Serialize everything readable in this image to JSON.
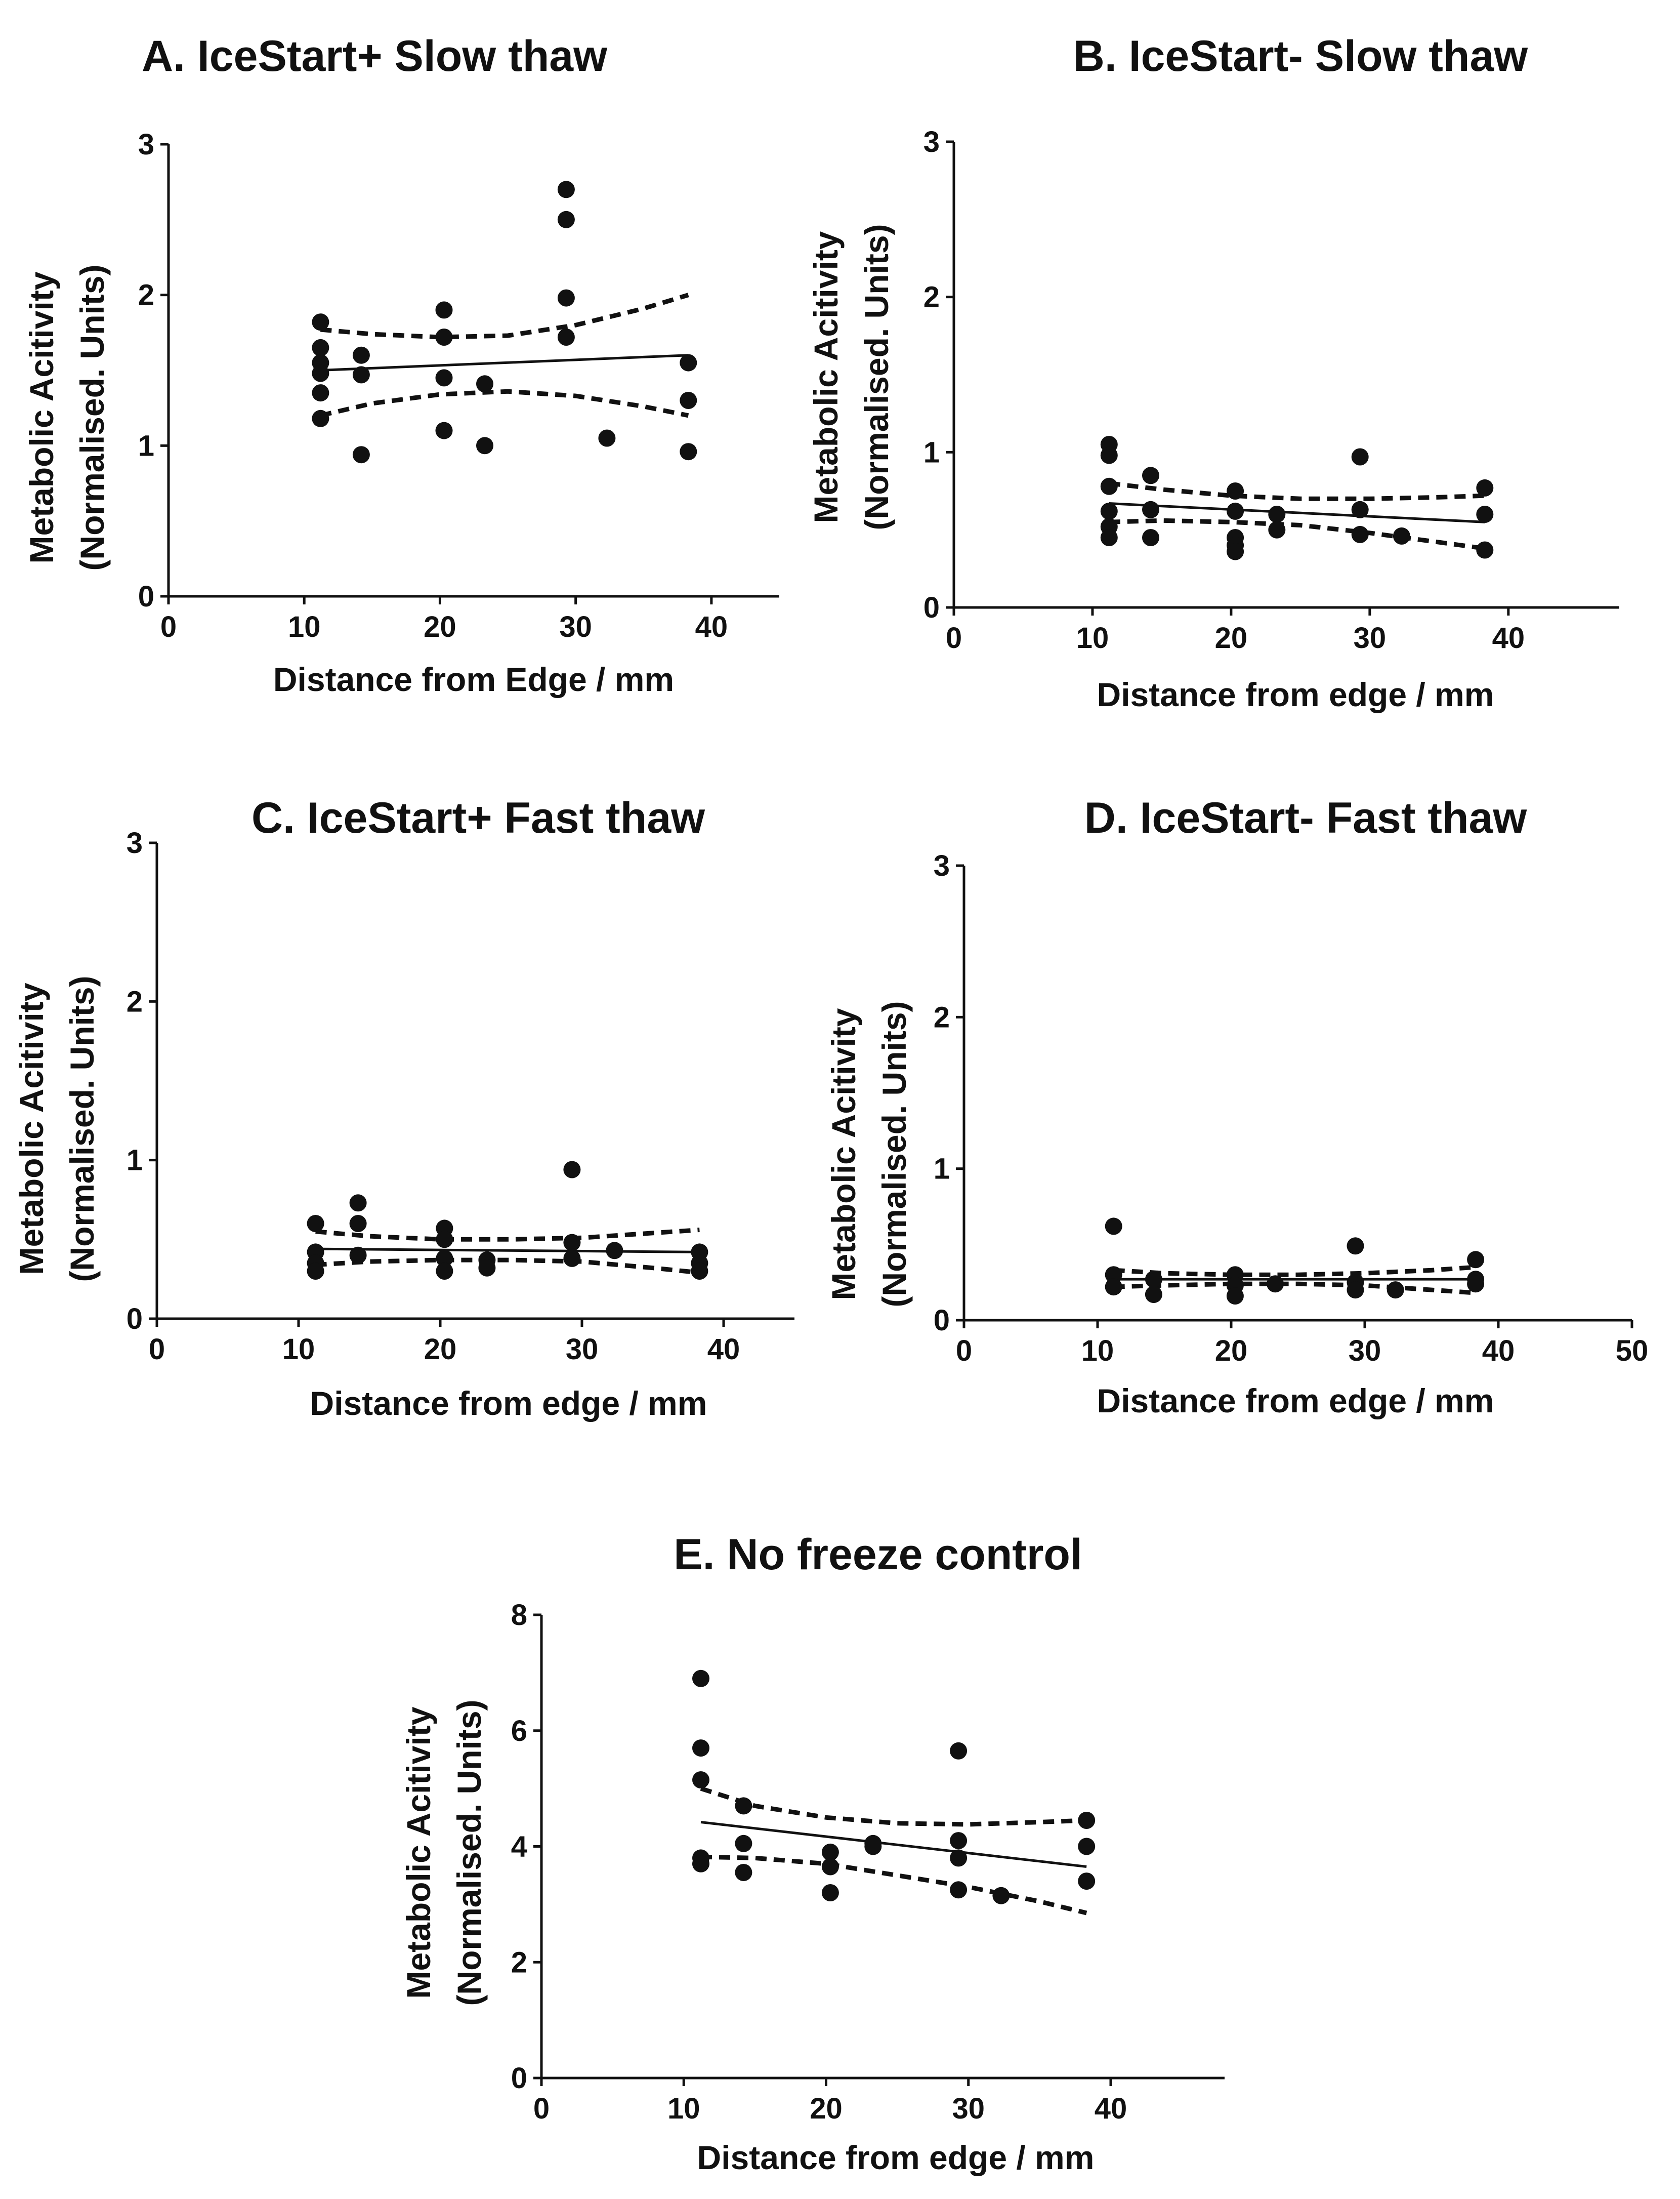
{
  "chart_data": [
    {
      "id": "A",
      "type": "scatter",
      "title": "A. IceStart+ Slow thaw",
      "xlabel": "Distance from Edge / mm",
      "ylabel_line1": "Metabolic Acitivity",
      "ylabel_line2": "(Normalised. Units)",
      "xlim": [
        0,
        45
      ],
      "ylim": [
        0,
        3
      ],
      "xticks": [
        0,
        10,
        20,
        30,
        40
      ],
      "yticks": [
        0,
        1,
        2,
        3
      ],
      "points": [
        [
          11.2,
          1.82
        ],
        [
          11.2,
          1.65
        ],
        [
          11.2,
          1.55
        ],
        [
          11.2,
          1.48
        ],
        [
          11.2,
          1.35
        ],
        [
          11.2,
          1.18
        ],
        [
          14.2,
          1.6
        ],
        [
          14.2,
          1.47
        ],
        [
          14.2,
          0.94
        ],
        [
          20.3,
          1.9
        ],
        [
          20.3,
          1.72
        ],
        [
          20.3,
          1.45
        ],
        [
          20.3,
          1.1
        ],
        [
          23.3,
          1.41
        ],
        [
          23.3,
          1.0
        ],
        [
          29.3,
          2.7
        ],
        [
          29.3,
          2.5
        ],
        [
          29.3,
          1.98
        ],
        [
          29.3,
          1.72
        ],
        [
          32.3,
          1.05
        ],
        [
          38.3,
          1.55
        ],
        [
          38.3,
          1.3
        ],
        [
          38.3,
          0.96
        ]
      ],
      "fit": {
        "x": [
          11.2,
          38.3
        ],
        "y": [
          1.5,
          1.6
        ]
      },
      "ci_upper": {
        "x": [
          11.2,
          15,
          20,
          25,
          30,
          35,
          38.3
        ],
        "y": [
          1.77,
          1.74,
          1.72,
          1.73,
          1.8,
          1.91,
          2.0
        ]
      },
      "ci_lower": {
        "x": [
          11.2,
          15,
          20,
          25,
          30,
          35,
          38.3
        ],
        "y": [
          1.2,
          1.28,
          1.34,
          1.36,
          1.33,
          1.26,
          1.2
        ]
      }
    },
    {
      "id": "B",
      "type": "scatter",
      "title": "B. IceStart- Slow thaw",
      "xlabel": "Distance from edge / mm",
      "ylabel_line1": "Metabolic Acitivity",
      "ylabel_line2": "(Normalised. Units)",
      "xlim": [
        0,
        48
      ],
      "ylim": [
        0,
        3
      ],
      "xticks": [
        0,
        10,
        20,
        30,
        40
      ],
      "yticks": [
        0,
        1,
        2,
        3
      ],
      "points": [
        [
          11.2,
          1.05
        ],
        [
          11.2,
          0.98
        ],
        [
          11.2,
          0.78
        ],
        [
          11.2,
          0.62
        ],
        [
          11.2,
          0.52
        ],
        [
          11.2,
          0.45
        ],
        [
          14.2,
          0.85
        ],
        [
          14.2,
          0.63
        ],
        [
          14.2,
          0.45
        ],
        [
          20.3,
          0.75
        ],
        [
          20.3,
          0.62
        ],
        [
          20.3,
          0.45
        ],
        [
          20.3,
          0.4
        ],
        [
          20.3,
          0.36
        ],
        [
          23.3,
          0.6
        ],
        [
          23.3,
          0.5
        ],
        [
          29.3,
          0.97
        ],
        [
          29.3,
          0.63
        ],
        [
          29.3,
          0.47
        ],
        [
          32.3,
          0.46
        ],
        [
          38.3,
          0.77
        ],
        [
          38.3,
          0.6
        ],
        [
          38.3,
          0.37
        ]
      ],
      "fit": {
        "x": [
          11.2,
          38.3
        ],
        "y": [
          0.67,
          0.55
        ]
      },
      "ci_upper": {
        "x": [
          11.2,
          15,
          20,
          25,
          30,
          35,
          38.3
        ],
        "y": [
          0.8,
          0.76,
          0.72,
          0.7,
          0.7,
          0.71,
          0.72
        ]
      },
      "ci_lower": {
        "x": [
          11.2,
          15,
          20,
          25,
          30,
          35,
          38.3
        ],
        "y": [
          0.55,
          0.56,
          0.55,
          0.53,
          0.48,
          0.42,
          0.38
        ]
      }
    },
    {
      "id": "C",
      "type": "scatter",
      "title": "C. IceStart+ Fast thaw",
      "xlabel": "Distance from edge / mm",
      "ylabel_line1": "Metabolic Acitivity",
      "ylabel_line2": "(Normalised. Units)",
      "xlim": [
        0,
        45
      ],
      "ylim": [
        0,
        3
      ],
      "xticks": [
        0,
        10,
        20,
        30,
        40
      ],
      "yticks": [
        0,
        1,
        2,
        3
      ],
      "points": [
        [
          11.2,
          0.6
        ],
        [
          11.2,
          0.42
        ],
        [
          11.2,
          0.35
        ],
        [
          11.2,
          0.3
        ],
        [
          14.2,
          0.73
        ],
        [
          14.2,
          0.6
        ],
        [
          14.2,
          0.4
        ],
        [
          20.3,
          0.57
        ],
        [
          20.3,
          0.5
        ],
        [
          20.3,
          0.38
        ],
        [
          20.3,
          0.3
        ],
        [
          23.3,
          0.37
        ],
        [
          23.3,
          0.32
        ],
        [
          29.3,
          0.94
        ],
        [
          29.3,
          0.48
        ],
        [
          29.3,
          0.38
        ],
        [
          32.3,
          0.43
        ],
        [
          38.3,
          0.42
        ],
        [
          38.3,
          0.35
        ],
        [
          38.3,
          0.3
        ]
      ],
      "fit": {
        "x": [
          11.2,
          38.3
        ],
        "y": [
          0.44,
          0.42
        ]
      },
      "ci_upper": {
        "x": [
          11.2,
          15,
          20,
          25,
          30,
          35,
          38.3
        ],
        "y": [
          0.55,
          0.52,
          0.5,
          0.5,
          0.51,
          0.54,
          0.56
        ]
      },
      "ci_lower": {
        "x": [
          11.2,
          15,
          20,
          25,
          30,
          35,
          38.3
        ],
        "y": [
          0.34,
          0.36,
          0.37,
          0.37,
          0.36,
          0.32,
          0.29
        ]
      }
    },
    {
      "id": "D",
      "type": "scatter",
      "title": "D. IceStart- Fast thaw",
      "xlabel": "Distance from edge / mm",
      "ylabel_line1": "Metabolic Acitivity",
      "ylabel_line2": "(Normalised. Units)",
      "xlim": [
        0,
        50
      ],
      "ylim": [
        0,
        3
      ],
      "xticks": [
        0,
        10,
        20,
        30,
        40,
        50
      ],
      "yticks": [
        0,
        1,
        2,
        3
      ],
      "points": [
        [
          11.2,
          0.62
        ],
        [
          11.2,
          0.3
        ],
        [
          11.2,
          0.22
        ],
        [
          14.2,
          0.27
        ],
        [
          14.2,
          0.17
        ],
        [
          20.3,
          0.3
        ],
        [
          20.3,
          0.23
        ],
        [
          20.3,
          0.16
        ],
        [
          23.3,
          0.24
        ],
        [
          29.3,
          0.49
        ],
        [
          29.3,
          0.25
        ],
        [
          29.3,
          0.2
        ],
        [
          32.3,
          0.2
        ],
        [
          38.3,
          0.4
        ],
        [
          38.3,
          0.27
        ],
        [
          38.3,
          0.24
        ]
      ],
      "fit": {
        "x": [
          11.2,
          38.3
        ],
        "y": [
          0.27,
          0.27
        ]
      },
      "ci_upper": {
        "x": [
          11.2,
          15,
          20,
          25,
          30,
          35,
          38.3
        ],
        "y": [
          0.33,
          0.31,
          0.3,
          0.3,
          0.31,
          0.33,
          0.35
        ]
      },
      "ci_lower": {
        "x": [
          11.2,
          15,
          20,
          25,
          30,
          35,
          38.3
        ],
        "y": [
          0.22,
          0.23,
          0.24,
          0.24,
          0.23,
          0.2,
          0.18
        ]
      }
    },
    {
      "id": "E",
      "type": "scatter",
      "title": "E. No freeze control",
      "xlabel": "Distance from edge / mm",
      "ylabel_line1": "Metabolic Acitivity",
      "ylabel_line2": "(Normalised. Units)",
      "xlim": [
        0,
        48
      ],
      "ylim": [
        0,
        8
      ],
      "xticks": [
        0,
        10,
        20,
        30,
        40
      ],
      "yticks": [
        0,
        2,
        4,
        6,
        8
      ],
      "points": [
        [
          11.2,
          6.9
        ],
        [
          11.2,
          5.7
        ],
        [
          11.2,
          5.15
        ],
        [
          11.2,
          3.8
        ],
        [
          11.2,
          3.7
        ],
        [
          14.2,
          4.7
        ],
        [
          14.2,
          4.05
        ],
        [
          14.2,
          3.55
        ],
        [
          20.3,
          3.9
        ],
        [
          20.3,
          3.65
        ],
        [
          20.3,
          3.2
        ],
        [
          23.3,
          4.05
        ],
        [
          23.3,
          4.0
        ],
        [
          29.3,
          5.65
        ],
        [
          29.3,
          4.1
        ],
        [
          29.3,
          3.8
        ],
        [
          29.3,
          3.25
        ],
        [
          32.3,
          3.15
        ],
        [
          38.3,
          4.45
        ],
        [
          38.3,
          4.0
        ],
        [
          38.3,
          3.4
        ]
      ],
      "fit": {
        "x": [
          11.2,
          38.3
        ],
        "y": [
          4.42,
          3.65
        ]
      },
      "ci_upper": {
        "x": [
          11.2,
          15,
          20,
          25,
          30,
          35,
          38.3
        ],
        "y": [
          5.0,
          4.7,
          4.5,
          4.4,
          4.38,
          4.42,
          4.45
        ]
      },
      "ci_lower": {
        "x": [
          11.2,
          15,
          20,
          25,
          30,
          35,
          38.3
        ],
        "y": [
          3.82,
          3.8,
          3.7,
          3.5,
          3.3,
          3.05,
          2.85
        ]
      }
    }
  ]
}
